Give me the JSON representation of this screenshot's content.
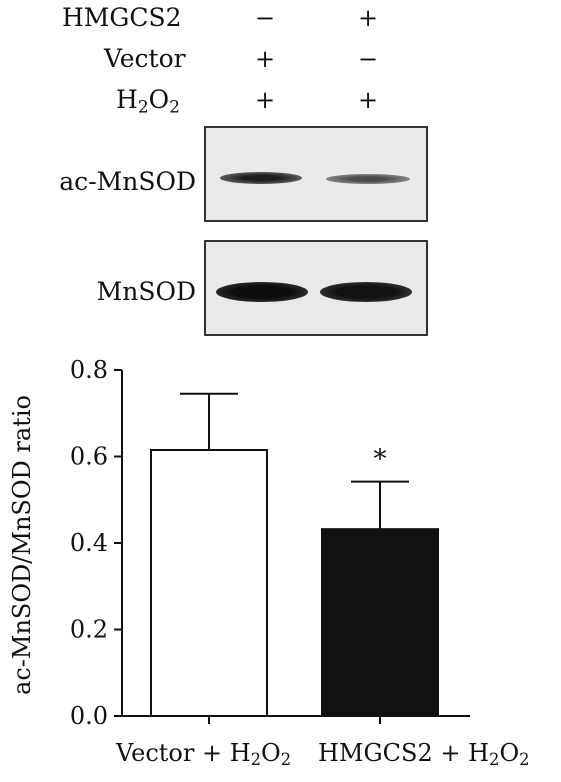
{
  "conditions": {
    "rows": [
      {
        "label": "HMGCS2",
        "signs": [
          "−",
          "+"
        ]
      },
      {
        "label": "Vector",
        "signs": [
          "+",
          "−"
        ]
      },
      {
        "label_main": "H",
        "label_sub1": "2",
        "label_mid": "O",
        "label_sub2": "2",
        "signs": [
          "+",
          "+"
        ]
      }
    ]
  },
  "blots": [
    {
      "label": "ac-MnSOD",
      "band_intensity": [
        0.85,
        0.6
      ]
    },
    {
      "label": "MnSOD",
      "band_intensity": [
        1.0,
        0.95
      ]
    }
  ],
  "chart_data": {
    "type": "bar",
    "ylabel": "ac-MnSOD/MnSOD ratio",
    "ylim": [
      0,
      0.8
    ],
    "yticks": [
      "0.0",
      "0.2",
      "0.4",
      "0.6",
      "0.8"
    ],
    "categories": [
      {
        "text": "Vector + H",
        "sub1": "2",
        "mid": "O",
        "sub2": "2"
      },
      {
        "text": "HMGCS2 + H",
        "sub1": "2",
        "mid": "O",
        "sub2": "2"
      }
    ],
    "values": [
      0.615,
      0.432
    ],
    "errors": [
      0.13,
      0.11
    ],
    "bar_fills": [
      "#ffffff",
      "#111111"
    ],
    "annotations": [
      "",
      "*"
    ]
  }
}
